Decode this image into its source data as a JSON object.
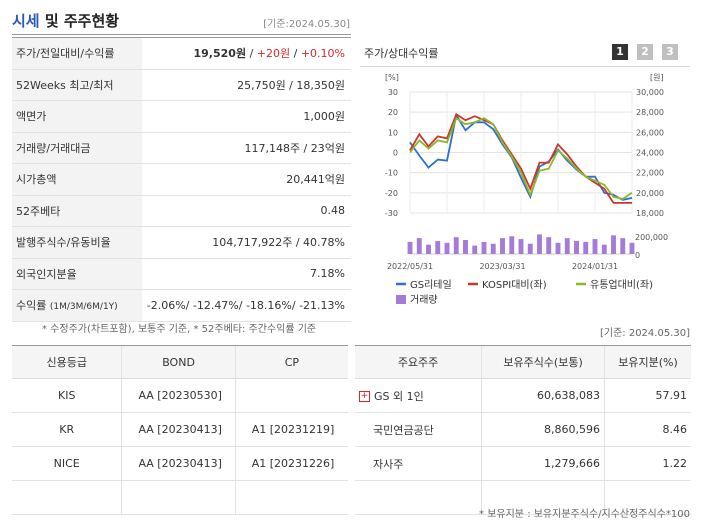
{
  "header": {
    "title_part1": "시세",
    "title_part2": " 및 주주현황",
    "base_date": "[기준:2024.05.30]"
  },
  "price_table": {
    "rows": [
      {
        "label": "주가/전일대비/수익률",
        "value_main": "19,520원",
        "value_change": "+20원",
        "value_rate": "+0.10%"
      },
      {
        "label": "52Weeks 최고/최저",
        "value": "25,750원 / 18,350원"
      },
      {
        "label": "액면가",
        "value": "1,000원"
      },
      {
        "label": "거래량/거래대금",
        "value": "117,148주 / 23억원"
      },
      {
        "label": "시가총액",
        "value": "20,441억원"
      },
      {
        "label": "52주베타",
        "value": "0.48"
      },
      {
        "label": "발행주식수/유동비율",
        "value": "104,717,922주 / 40.78%"
      },
      {
        "label": "외국인지분율",
        "value": "7.18%"
      },
      {
        "label": "수익률",
        "label_sub": "(1M/3M/6M/1Y)",
        "value": "-2.06%/ -12.47%/ -18.16%/ -21.13%"
      }
    ],
    "footnote": "* 수정주가(차트포함), 보통주 기준, * 52주베타: 주간수익률 기준"
  },
  "chart": {
    "title": "주가/상대수익률",
    "tabs": [
      "1",
      "2",
      "3"
    ],
    "left_unit": "[%]",
    "right_unit": "[원]",
    "volume_tick": "200,000",
    "volume_zero": "0"
  },
  "chart_data": {
    "type": "line",
    "x": [
      "2022/05/31",
      "2022/06/30",
      "2022/07/31",
      "2022/08/31",
      "2022/09/30",
      "2022/10/31",
      "2022/11/30",
      "2022/12/31",
      "2023/01/31",
      "2023/02/28",
      "2023/03/31",
      "2023/04/30",
      "2023/05/31",
      "2023/06/30",
      "2023/07/31",
      "2023/08/31",
      "2023/09/30",
      "2023/10/31",
      "2023/11/30",
      "2023/12/31",
      "2024/01/31",
      "2024/02/29",
      "2024/03/31",
      "2024/04/30",
      "2024/05/31"
    ],
    "x_tick_labels": [
      "2022/05/31",
      "2023/03/31",
      "2024/01/31"
    ],
    "left_axis": {
      "unit": "%",
      "ylim": [
        -30,
        30
      ],
      "ticks": [
        30,
        20,
        10,
        0,
        -10,
        -20,
        -30
      ]
    },
    "right_axis": {
      "unit": "원",
      "ylim": [
        18000,
        30000
      ],
      "ticks": [
        "30,000",
        "28,000",
        "26,000",
        "24,000",
        "22,000",
        "20,000",
        "18,000"
      ]
    },
    "volume_axis": {
      "ylim": [
        0,
        300000
      ],
      "ticks": [
        "200,000",
        "0"
      ]
    },
    "series": [
      {
        "name": "GS리테일",
        "color": "#2f6fd0",
        "axis": "right",
        "values": [
          25000,
          23700,
          22500,
          23300,
          23200,
          27700,
          26200,
          27000,
          27000,
          26300,
          24800,
          23500,
          21500,
          19600,
          22600,
          23100,
          24300,
          23200,
          22300,
          21600,
          21600,
          20000,
          19800,
          19300,
          19500
        ]
      },
      {
        "name": "KOSPI대비(좌)",
        "color": "#c9382a",
        "axis": "left",
        "values": [
          1,
          9,
          3,
          8,
          7,
          19,
          16,
          18,
          16,
          14,
          6,
          -1,
          -8,
          -18,
          -5,
          -5,
          4,
          -1,
          -7,
          -12,
          -15,
          -18,
          -25,
          -25,
          -25
        ]
      },
      {
        "name": "유통업대비(좌)",
        "color": "#8db82a",
        "axis": "left",
        "values": [
          0,
          6,
          2,
          6,
          5,
          17,
          14,
          15,
          17,
          14,
          5,
          -2,
          -10,
          -21,
          -9,
          -8,
          1,
          -3,
          -8,
          -12,
          -14,
          -16,
          -22,
          -23,
          -20
        ]
      },
      {
        "name": "거래량",
        "color": "#a47bd6",
        "axis": "volume",
        "values": [
          130000,
          170000,
          100000,
          140000,
          120000,
          180000,
          150000,
          90000,
          130000,
          110000,
          170000,
          190000,
          160000,
          110000,
          210000,
          180000,
          120000,
          170000,
          140000,
          130000,
          160000,
          100000,
          200000,
          170000,
          120000
        ]
      }
    ],
    "grid": true,
    "legend": "bottom"
  },
  "credit_table": {
    "headers": [
      "신용등급",
      "BOND",
      "CP"
    ],
    "rows": [
      [
        "KIS",
        "AA  [20230530]",
        ""
      ],
      [
        "KR",
        "AA  [20230413]",
        "A1  [20231219]"
      ],
      [
        "NICE",
        "AA  [20230413]",
        "A1  [20231226]"
      ],
      [
        "",
        "",
        ""
      ]
    ]
  },
  "shareholder_table": {
    "base_date": "[기준: 2024.05.30]",
    "headers": [
      "주요주주",
      "보유주식수(보통)",
      "보유지분(%)"
    ],
    "rows": [
      {
        "name": "GS 외 1인",
        "shares": "60,638,083",
        "ratio": "57.91",
        "expandable": true
      },
      {
        "name": "국민연금공단",
        "shares": "8,860,596",
        "ratio": "8.46"
      },
      {
        "name": "자사주",
        "shares": "1,279,666",
        "ratio": "1.22"
      },
      {
        "name": "",
        "shares": "",
        "ratio": ""
      }
    ],
    "footnote": "* 보유지분 : 보유지분주식수/지수산정주식수*100"
  },
  "colors": {
    "accent_blue": "#2a5ab8",
    "up_red": "#d8282a",
    "tab_active": "#333333",
    "tab_inactive": "#bfbfbf"
  }
}
